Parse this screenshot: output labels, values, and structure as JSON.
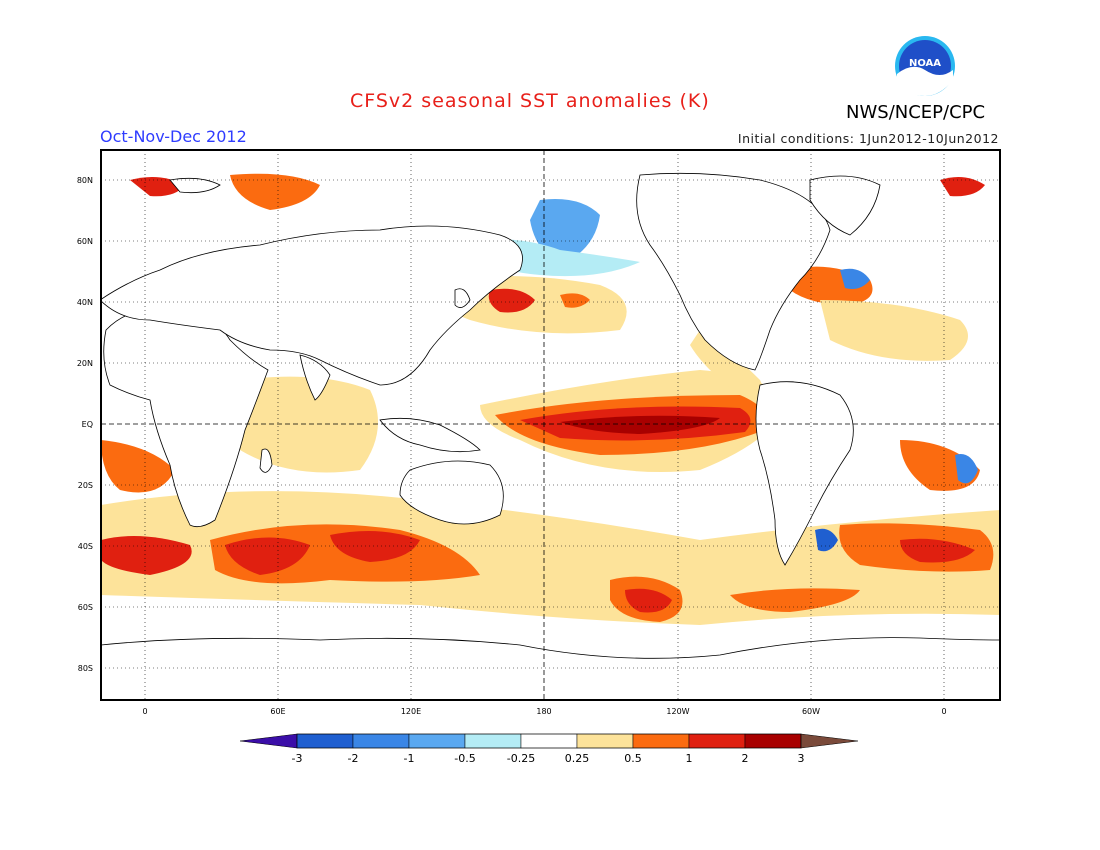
{
  "header": {
    "title": "CFSv2 seasonal SST anomalies (K)",
    "agency": "NWS/NCEP/CPC",
    "logo_text": "NOAA",
    "season": "Oct-Nov-Dec 2012",
    "initial_conditions": "Initial conditions: 1Jun2012-10Jun2012"
  },
  "axes": {
    "lat_labels": [
      "80N",
      "60N",
      "40N",
      "20N",
      "EQ",
      "20S",
      "40S",
      "60S",
      "80S"
    ],
    "lon_labels": [
      "0",
      "60E",
      "120E",
      "180",
      "120W",
      "60W",
      "0"
    ]
  },
  "colorbar": {
    "labels": [
      "-3",
      "-2",
      "-1",
      "-0.5",
      "-0.25",
      "0.25",
      "0.5",
      "1",
      "2",
      "3"
    ],
    "colors": [
      "#3b0ea8",
      "#1f5fd0",
      "#3a86e6",
      "#5aa8f0",
      "#b4ecf5",
      "#ffffff",
      "#fde39a",
      "#fb6b10",
      "#e02010",
      "#a80000",
      "#7a4a3a"
    ]
  },
  "colors": {
    "title": "#e8201a",
    "season": "#2f3cff",
    "noaa_blue": "#1f4fc8",
    "noaa_ring": "#29b8f0"
  }
}
